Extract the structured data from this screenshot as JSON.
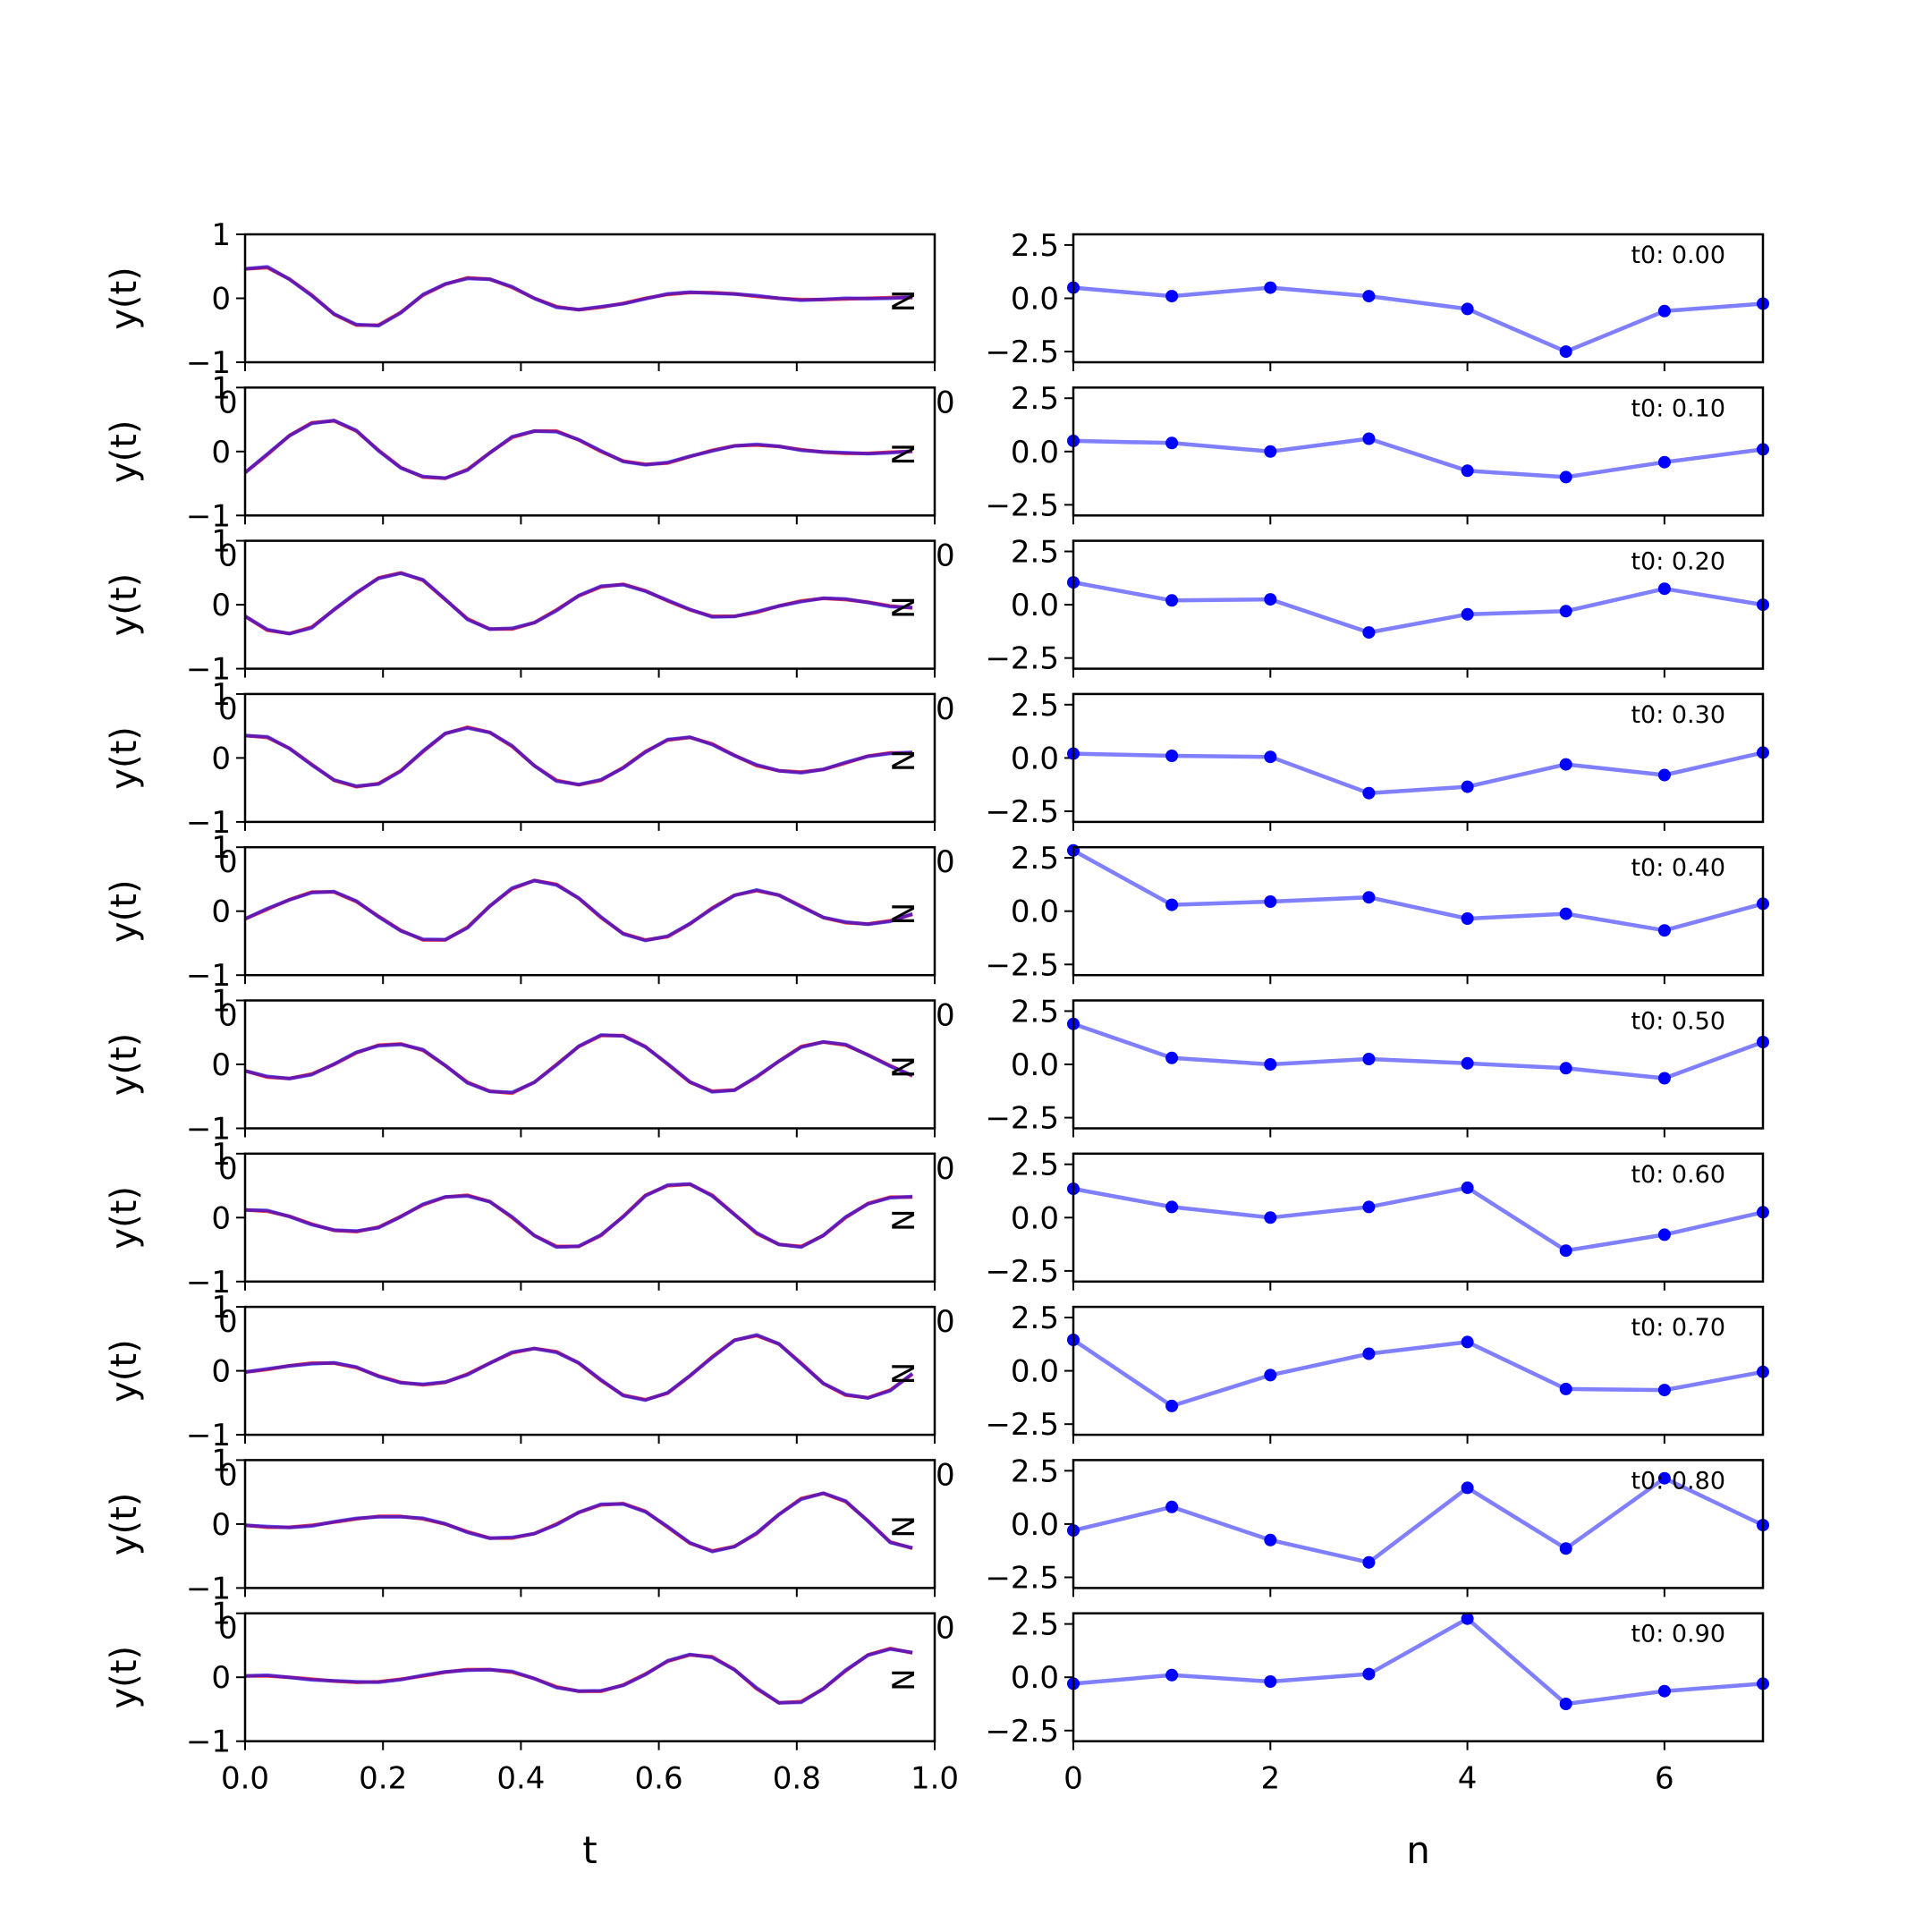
{
  "chart_data": {
    "type": "line",
    "layout": "10 rows x 2 columns of subplots",
    "colors": {
      "signal_true": "#ff0000",
      "signal_fit": "#0000ff",
      "coeff": "#0000ff"
    },
    "left_column": {
      "xlabel": "t",
      "ylabel": "y(t)",
      "xlim": [
        0,
        1
      ],
      "ylim": [
        -1,
        1
      ],
      "xticks": [
        "0.0",
        "0.2",
        "0.4",
        "0.6",
        "0.8",
        "1.0"
      ],
      "yticks": [
        "1",
        "0",
        "−1"
      ],
      "clipped_label": "N",
      "t": [
        0,
        0.0323,
        0.0645,
        0.0968,
        0.129,
        0.1613,
        0.1935,
        0.2258,
        0.2581,
        0.2903,
        0.3226,
        0.3548,
        0.3871,
        0.4194,
        0.4516,
        0.4839,
        0.5161,
        0.5484,
        0.5806,
        0.6129,
        0.6452,
        0.6774,
        0.7097,
        0.7419,
        0.7742,
        0.8065,
        0.8387,
        0.871,
        0.9032,
        0.9355,
        0.9677
      ],
      "series": [
        [
          0.46,
          0.48,
          0.3,
          0.05,
          -0.25,
          -0.42,
          -0.42,
          -0.22,
          0.05,
          0.22,
          0.32,
          0.3,
          0.17,
          0.0,
          -0.13,
          -0.18,
          -0.14,
          -0.08,
          0.0,
          0.06,
          0.09,
          0.09,
          0.07,
          0.03,
          0.0,
          -0.02,
          -0.02,
          -0.01,
          0.0,
          0.01,
          0.01
        ],
        [
          -0.33,
          -0.05,
          0.25,
          0.45,
          0.48,
          0.32,
          0.02,
          -0.25,
          -0.4,
          -0.42,
          -0.28,
          -0.02,
          0.22,
          0.32,
          0.32,
          0.18,
          0.0,
          -0.15,
          -0.2,
          -0.18,
          -0.08,
          0.02,
          0.09,
          0.1,
          0.08,
          0.03,
          -0.01,
          -0.03,
          -0.03,
          -0.01,
          0.0
        ],
        [
          -0.18,
          -0.4,
          -0.45,
          -0.35,
          -0.08,
          0.18,
          0.42,
          0.5,
          0.38,
          0.08,
          -0.22,
          -0.38,
          -0.38,
          -0.28,
          -0.08,
          0.14,
          0.28,
          0.32,
          0.22,
          0.06,
          -0.08,
          -0.18,
          -0.18,
          -0.12,
          -0.02,
          0.06,
          0.1,
          0.08,
          0.04,
          -0.02,
          -0.05
        ],
        [
          0.35,
          0.32,
          0.15,
          -0.1,
          -0.35,
          -0.45,
          -0.4,
          -0.2,
          0.1,
          0.38,
          0.48,
          0.4,
          0.18,
          -0.12,
          -0.35,
          -0.42,
          -0.35,
          -0.15,
          0.1,
          0.28,
          0.32,
          0.22,
          0.04,
          -0.12,
          -0.2,
          -0.22,
          -0.18,
          -0.08,
          0.03,
          0.08,
          0.08
        ],
        [
          -0.12,
          0.03,
          0.18,
          0.3,
          0.3,
          0.15,
          -0.08,
          -0.3,
          -0.45,
          -0.45,
          -0.25,
          0.08,
          0.35,
          0.48,
          0.42,
          0.2,
          -0.1,
          -0.35,
          -0.45,
          -0.4,
          -0.2,
          0.05,
          0.25,
          0.32,
          0.25,
          0.08,
          -0.1,
          -0.18,
          -0.2,
          -0.15,
          -0.05
        ],
        [
          -0.1,
          -0.2,
          -0.22,
          -0.15,
          0.0,
          0.18,
          0.3,
          0.32,
          0.22,
          -0.02,
          -0.28,
          -0.42,
          -0.45,
          -0.28,
          0.0,
          0.28,
          0.45,
          0.45,
          0.28,
          0.0,
          -0.28,
          -0.42,
          -0.4,
          -0.2,
          0.05,
          0.28,
          0.35,
          0.3,
          0.15,
          -0.02,
          -0.18
        ],
        [
          0.12,
          0.1,
          0.02,
          -0.1,
          -0.2,
          -0.22,
          -0.15,
          0.02,
          0.2,
          0.32,
          0.35,
          0.25,
          0.0,
          -0.28,
          -0.45,
          -0.45,
          -0.28,
          0.02,
          0.35,
          0.5,
          0.52,
          0.35,
          0.05,
          -0.25,
          -0.42,
          -0.45,
          -0.28,
          0.0,
          0.22,
          0.32,
          0.32
        ],
        [
          -0.02,
          0.02,
          0.08,
          0.12,
          0.12,
          0.05,
          -0.08,
          -0.18,
          -0.22,
          -0.18,
          -0.05,
          0.12,
          0.28,
          0.35,
          0.3,
          0.12,
          -0.15,
          -0.38,
          -0.45,
          -0.35,
          -0.08,
          0.22,
          0.48,
          0.55,
          0.42,
          0.12,
          -0.2,
          -0.38,
          -0.42,
          -0.3,
          -0.05
        ],
        [
          -0.02,
          -0.05,
          -0.05,
          -0.02,
          0.03,
          0.08,
          0.12,
          0.12,
          0.08,
          0.0,
          -0.12,
          -0.22,
          -0.22,
          -0.15,
          0.0,
          0.18,
          0.3,
          0.32,
          0.2,
          -0.05,
          -0.3,
          -0.42,
          -0.35,
          -0.15,
          0.15,
          0.4,
          0.48,
          0.35,
          0.05,
          -0.28,
          -0.38
        ],
        [
          0.02,
          0.02,
          0.0,
          -0.03,
          -0.06,
          -0.08,
          -0.07,
          -0.03,
          0.02,
          0.08,
          0.12,
          0.12,
          0.08,
          -0.02,
          -0.15,
          -0.22,
          -0.22,
          -0.12,
          0.05,
          0.25,
          0.35,
          0.32,
          0.12,
          -0.18,
          -0.4,
          -0.38,
          -0.18,
          0.1,
          0.35,
          0.45,
          0.38
        ]
      ]
    },
    "right_column": {
      "xlabel": "n",
      "xlim": [
        0,
        7
      ],
      "ylim": [
        -3,
        3
      ],
      "xticks": [
        "0",
        "2",
        "4",
        "6"
      ],
      "yticks": [
        "2.5",
        "0.0",
        "−2.5"
      ],
      "n": [
        0,
        1,
        2,
        3,
        4,
        5,
        6,
        7
      ],
      "annotations": [
        "t0: 0.00",
        "t0: 0.10",
        "t0: 0.20",
        "t0: 0.30",
        "t0: 0.40",
        "t0: 0.50",
        "t0: 0.60",
        "t0: 0.70",
        "t0: 0.80",
        "t0: 0.90"
      ],
      "series": [
        [
          0.5,
          0.1,
          0.5,
          0.1,
          -0.5,
          -2.5,
          -0.6,
          -0.25
        ],
        [
          0.5,
          0.4,
          0.0,
          0.6,
          -0.9,
          -1.2,
          -0.5,
          0.1
        ],
        [
          1.05,
          0.2,
          0.25,
          -1.3,
          -0.45,
          -0.3,
          0.75,
          0.0
        ],
        [
          0.2,
          0.1,
          0.05,
          -1.65,
          -1.35,
          -0.3,
          -0.8,
          0.25
        ],
        [
          2.85,
          0.3,
          0.45,
          0.65,
          -0.35,
          -0.12,
          -0.9,
          0.35
        ],
        [
          1.9,
          0.3,
          0.0,
          0.25,
          0.05,
          -0.18,
          -0.65,
          1.05
        ],
        [
          1.35,
          0.5,
          0.0,
          0.5,
          1.4,
          -1.55,
          -0.8,
          0.25
        ],
        [
          1.45,
          -1.65,
          -0.2,
          0.8,
          1.35,
          -0.85,
          -0.9,
          -0.05
        ],
        [
          -0.3,
          0.8,
          -0.75,
          -1.8,
          1.7,
          -1.15,
          2.15,
          -0.05
        ],
        [
          -0.3,
          0.1,
          -0.2,
          0.15,
          2.75,
          -1.25,
          -0.65,
          -0.3
        ]
      ]
    }
  }
}
